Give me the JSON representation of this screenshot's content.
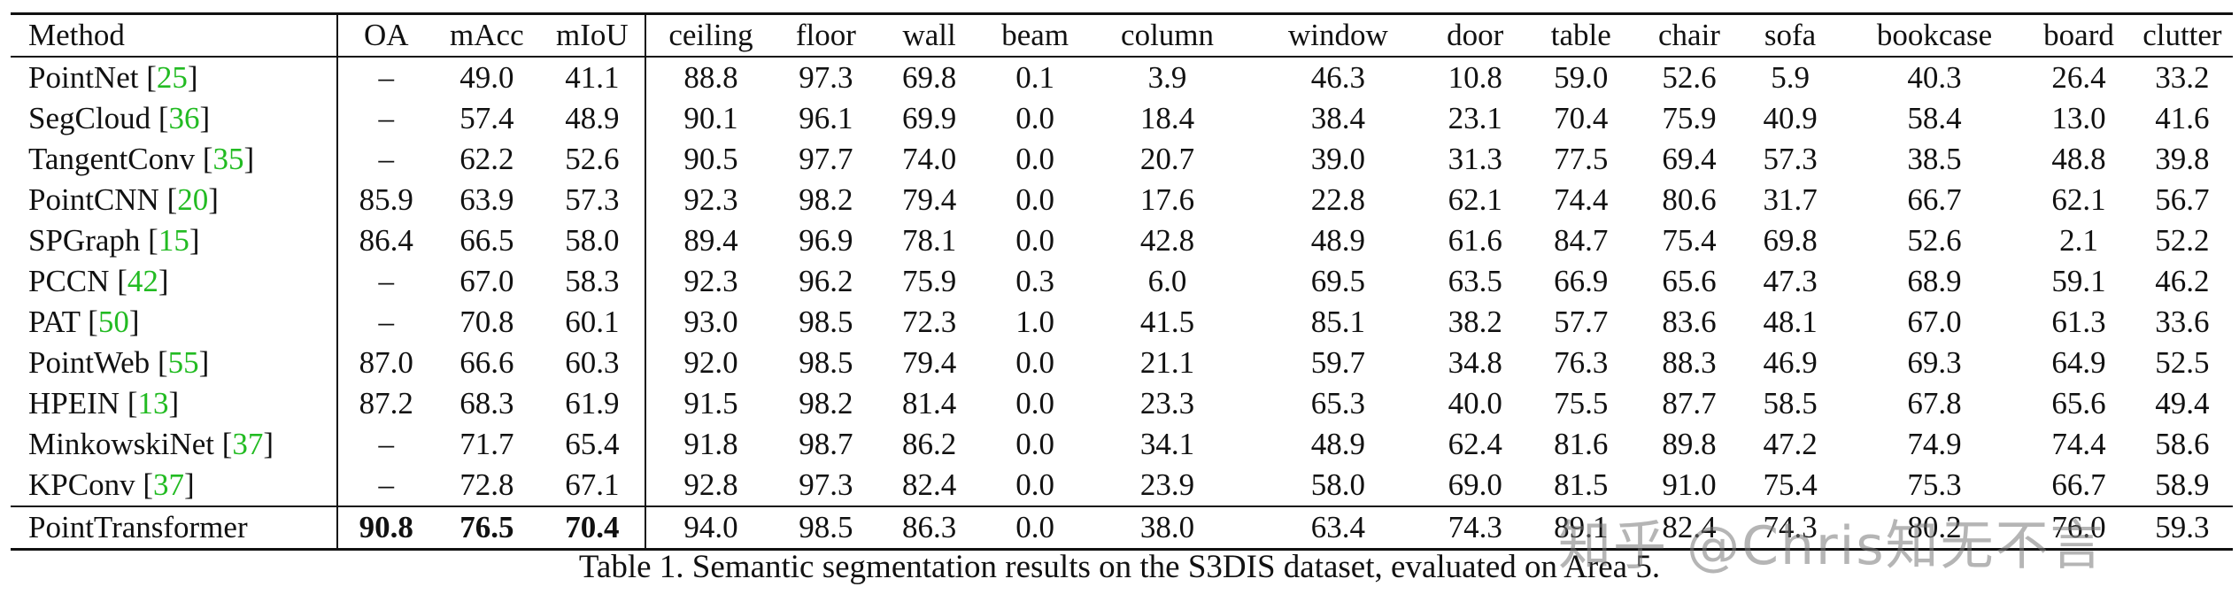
{
  "headers": [
    "Method",
    "OA",
    "mAcc",
    "mIoU",
    "ceiling",
    "floor",
    "wall",
    "beam",
    "column",
    "window",
    "door",
    "table",
    "chair",
    "sofa",
    "bookcase",
    "board",
    "clutter"
  ],
  "rows": [
    {
      "name": "PointNet",
      "ref": "25",
      "values": [
        "–",
        "49.0",
        "41.1",
        "88.8",
        "97.3",
        "69.8",
        "0.1",
        "3.9",
        "46.3",
        "10.8",
        "59.0",
        "52.6",
        "5.9",
        "40.3",
        "26.4",
        "33.2"
      ]
    },
    {
      "name": "SegCloud",
      "ref": "36",
      "values": [
        "–",
        "57.4",
        "48.9",
        "90.1",
        "96.1",
        "69.9",
        "0.0",
        "18.4",
        "38.4",
        "23.1",
        "70.4",
        "75.9",
        "40.9",
        "58.4",
        "13.0",
        "41.6"
      ]
    },
    {
      "name": "TangentConv",
      "ref": "35",
      "values": [
        "–",
        "62.2",
        "52.6",
        "90.5",
        "97.7",
        "74.0",
        "0.0",
        "20.7",
        "39.0",
        "31.3",
        "77.5",
        "69.4",
        "57.3",
        "38.5",
        "48.8",
        "39.8"
      ]
    },
    {
      "name": "PointCNN",
      "ref": "20",
      "values": [
        "85.9",
        "63.9",
        "57.3",
        "92.3",
        "98.2",
        "79.4",
        "0.0",
        "17.6",
        "22.8",
        "62.1",
        "74.4",
        "80.6",
        "31.7",
        "66.7",
        "62.1",
        "56.7"
      ]
    },
    {
      "name": "SPGraph",
      "ref": "15",
      "values": [
        "86.4",
        "66.5",
        "58.0",
        "89.4",
        "96.9",
        "78.1",
        "0.0",
        "42.8",
        "48.9",
        "61.6",
        "84.7",
        "75.4",
        "69.8",
        "52.6",
        "2.1",
        "52.2"
      ]
    },
    {
      "name": "PCCN",
      "ref": "42",
      "values": [
        "–",
        "67.0",
        "58.3",
        "92.3",
        "96.2",
        "75.9",
        "0.3",
        "6.0",
        "69.5",
        "63.5",
        "66.9",
        "65.6",
        "47.3",
        "68.9",
        "59.1",
        "46.2"
      ]
    },
    {
      "name": "PAT",
      "ref": "50",
      "values": [
        "–",
        "70.8",
        "60.1",
        "93.0",
        "98.5",
        "72.3",
        "1.0",
        "41.5",
        "85.1",
        "38.2",
        "57.7",
        "83.6",
        "48.1",
        "67.0",
        "61.3",
        "33.6"
      ]
    },
    {
      "name": "PointWeb",
      "ref": "55",
      "values": [
        "87.0",
        "66.6",
        "60.3",
        "92.0",
        "98.5",
        "79.4",
        "0.0",
        "21.1",
        "59.7",
        "34.8",
        "76.3",
        "88.3",
        "46.9",
        "69.3",
        "64.9",
        "52.5"
      ]
    },
    {
      "name": "HPEIN",
      "ref": "13",
      "values": [
        "87.2",
        "68.3",
        "61.9",
        "91.5",
        "98.2",
        "81.4",
        "0.0",
        "23.3",
        "65.3",
        "40.0",
        "75.5",
        "87.7",
        "58.5",
        "67.8",
        "65.6",
        "49.4"
      ]
    },
    {
      "name": "MinkowskiNet",
      "ref": "37",
      "values": [
        "–",
        "71.7",
        "65.4",
        "91.8",
        "98.7",
        "86.2",
        "0.0",
        "34.1",
        "48.9",
        "62.4",
        "81.6",
        "89.8",
        "47.2",
        "74.9",
        "74.4",
        "58.6"
      ]
    },
    {
      "name": "KPConv",
      "ref": "37",
      "values": [
        "–",
        "72.8",
        "67.1",
        "92.8",
        "97.3",
        "82.4",
        "0.0",
        "23.9",
        "58.0",
        "69.0",
        "81.5",
        "91.0",
        "75.4",
        "75.3",
        "66.7",
        "58.9"
      ]
    }
  ],
  "last_row": {
    "name": "PointTransformer",
    "values": [
      "90.8",
      "76.5",
      "70.4",
      "94.0",
      "98.5",
      "86.3",
      "0.0",
      "38.0",
      "63.4",
      "74.3",
      "89.1",
      "82.4",
      "74.3",
      "80.2",
      "76.0",
      "59.3"
    ]
  },
  "caption": "Table 1. Semantic segmentation results on the S3DIS dataset, evaluated on Area 5.",
  "watermark": "知乎 @Chris知无不言",
  "colors": {
    "reference_link": "#22bb22",
    "text": "#111111"
  }
}
